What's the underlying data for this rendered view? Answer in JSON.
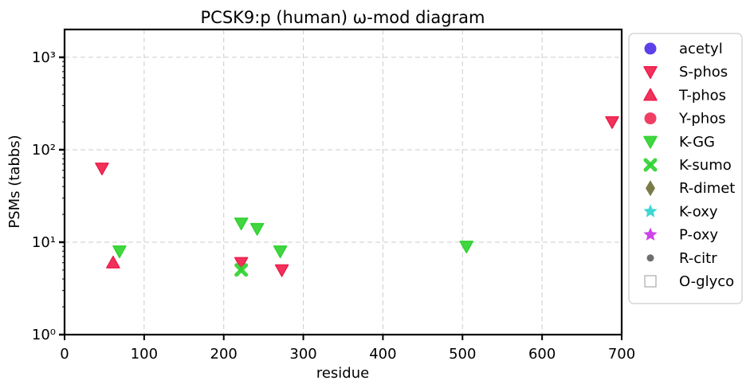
{
  "chart_data": {
    "type": "scatter",
    "title": "PCSK9:p (human) ω-mod diagram",
    "xlabel": "residue",
    "ylabel": "PSMs (tabbs)",
    "xlim": [
      0,
      700
    ],
    "ylim": [
      1,
      2000
    ],
    "yscale": "log",
    "grid": true,
    "legend_position": "right-outside",
    "x_ticks": [
      0,
      100,
      200,
      300,
      400,
      500,
      600,
      700
    ],
    "x_tick_labels": [
      "0",
      "100",
      "200",
      "300",
      "400",
      "500",
      "600",
      "700"
    ],
    "y_ticks": [
      1,
      10,
      100,
      1000
    ],
    "y_tick_labels": [
      "10⁰",
      "10¹",
      "10²",
      "10³"
    ],
    "series": [
      {
        "name": "acetyl",
        "marker": "circle",
        "color": "#3f1fe6",
        "points": []
      },
      {
        "name": "S-phos",
        "marker": "triangle-down",
        "color": "#ee1c4a",
        "points": [
          [
            47,
            63
          ],
          [
            222,
            6
          ],
          [
            273,
            5
          ],
          [
            688,
            200
          ]
        ]
      },
      {
        "name": "T-phos",
        "marker": "triangle-up",
        "color": "#ee1c4a",
        "points": [
          [
            61,
            6
          ]
        ]
      },
      {
        "name": "Y-phos",
        "marker": "circle",
        "color": "#ee1c4a",
        "points": []
      },
      {
        "name": "K-GG",
        "marker": "triangle-down",
        "color": "#2ed12e",
        "points": [
          [
            69,
            8
          ],
          [
            222,
            16
          ],
          [
            242,
            14
          ],
          [
            271,
            8
          ],
          [
            505,
            9
          ]
        ]
      },
      {
        "name": "K-sumo",
        "marker": "x",
        "color": "#2ed12e",
        "points": [
          [
            222,
            5
          ]
        ]
      },
      {
        "name": "R-dimet",
        "marker": "diamond",
        "color": "#6b6b35",
        "points": []
      },
      {
        "name": "K-oxy",
        "marker": "star",
        "color": "#2ad2d2",
        "points": []
      },
      {
        "name": "P-oxy",
        "marker": "star",
        "color": "#c830e8",
        "points": []
      },
      {
        "name": "R-citr",
        "marker": "dot",
        "color": "#555555",
        "points": []
      },
      {
        "name": "O-glyco",
        "marker": "square-open",
        "color": "#aaaaaa",
        "points": []
      }
    ]
  }
}
